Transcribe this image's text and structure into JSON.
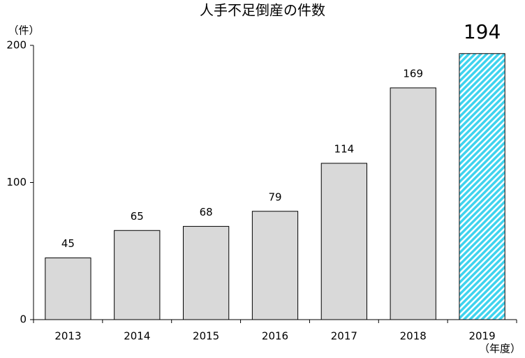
{
  "chart_data": {
    "type": "bar",
    "title": "人手不足倒産の件数",
    "y_unit": "（件）",
    "x_unit": "（年度）",
    "categories": [
      "2013",
      "2014",
      "2015",
      "2016",
      "2017",
      "2018",
      "2019"
    ],
    "values": [
      45,
      65,
      68,
      79,
      114,
      169,
      194
    ],
    "colors": [
      "#d9d9d9",
      "#d9d9d9",
      "#d9d9d9",
      "#d9d9d9",
      "#d9d9d9",
      "#d9d9d9",
      "#3fd3ee"
    ],
    "hatch": [
      false,
      false,
      false,
      false,
      false,
      false,
      true
    ],
    "ylim": [
      0,
      200
    ],
    "yticks": [
      0,
      100,
      200
    ],
    "grid": false
  }
}
